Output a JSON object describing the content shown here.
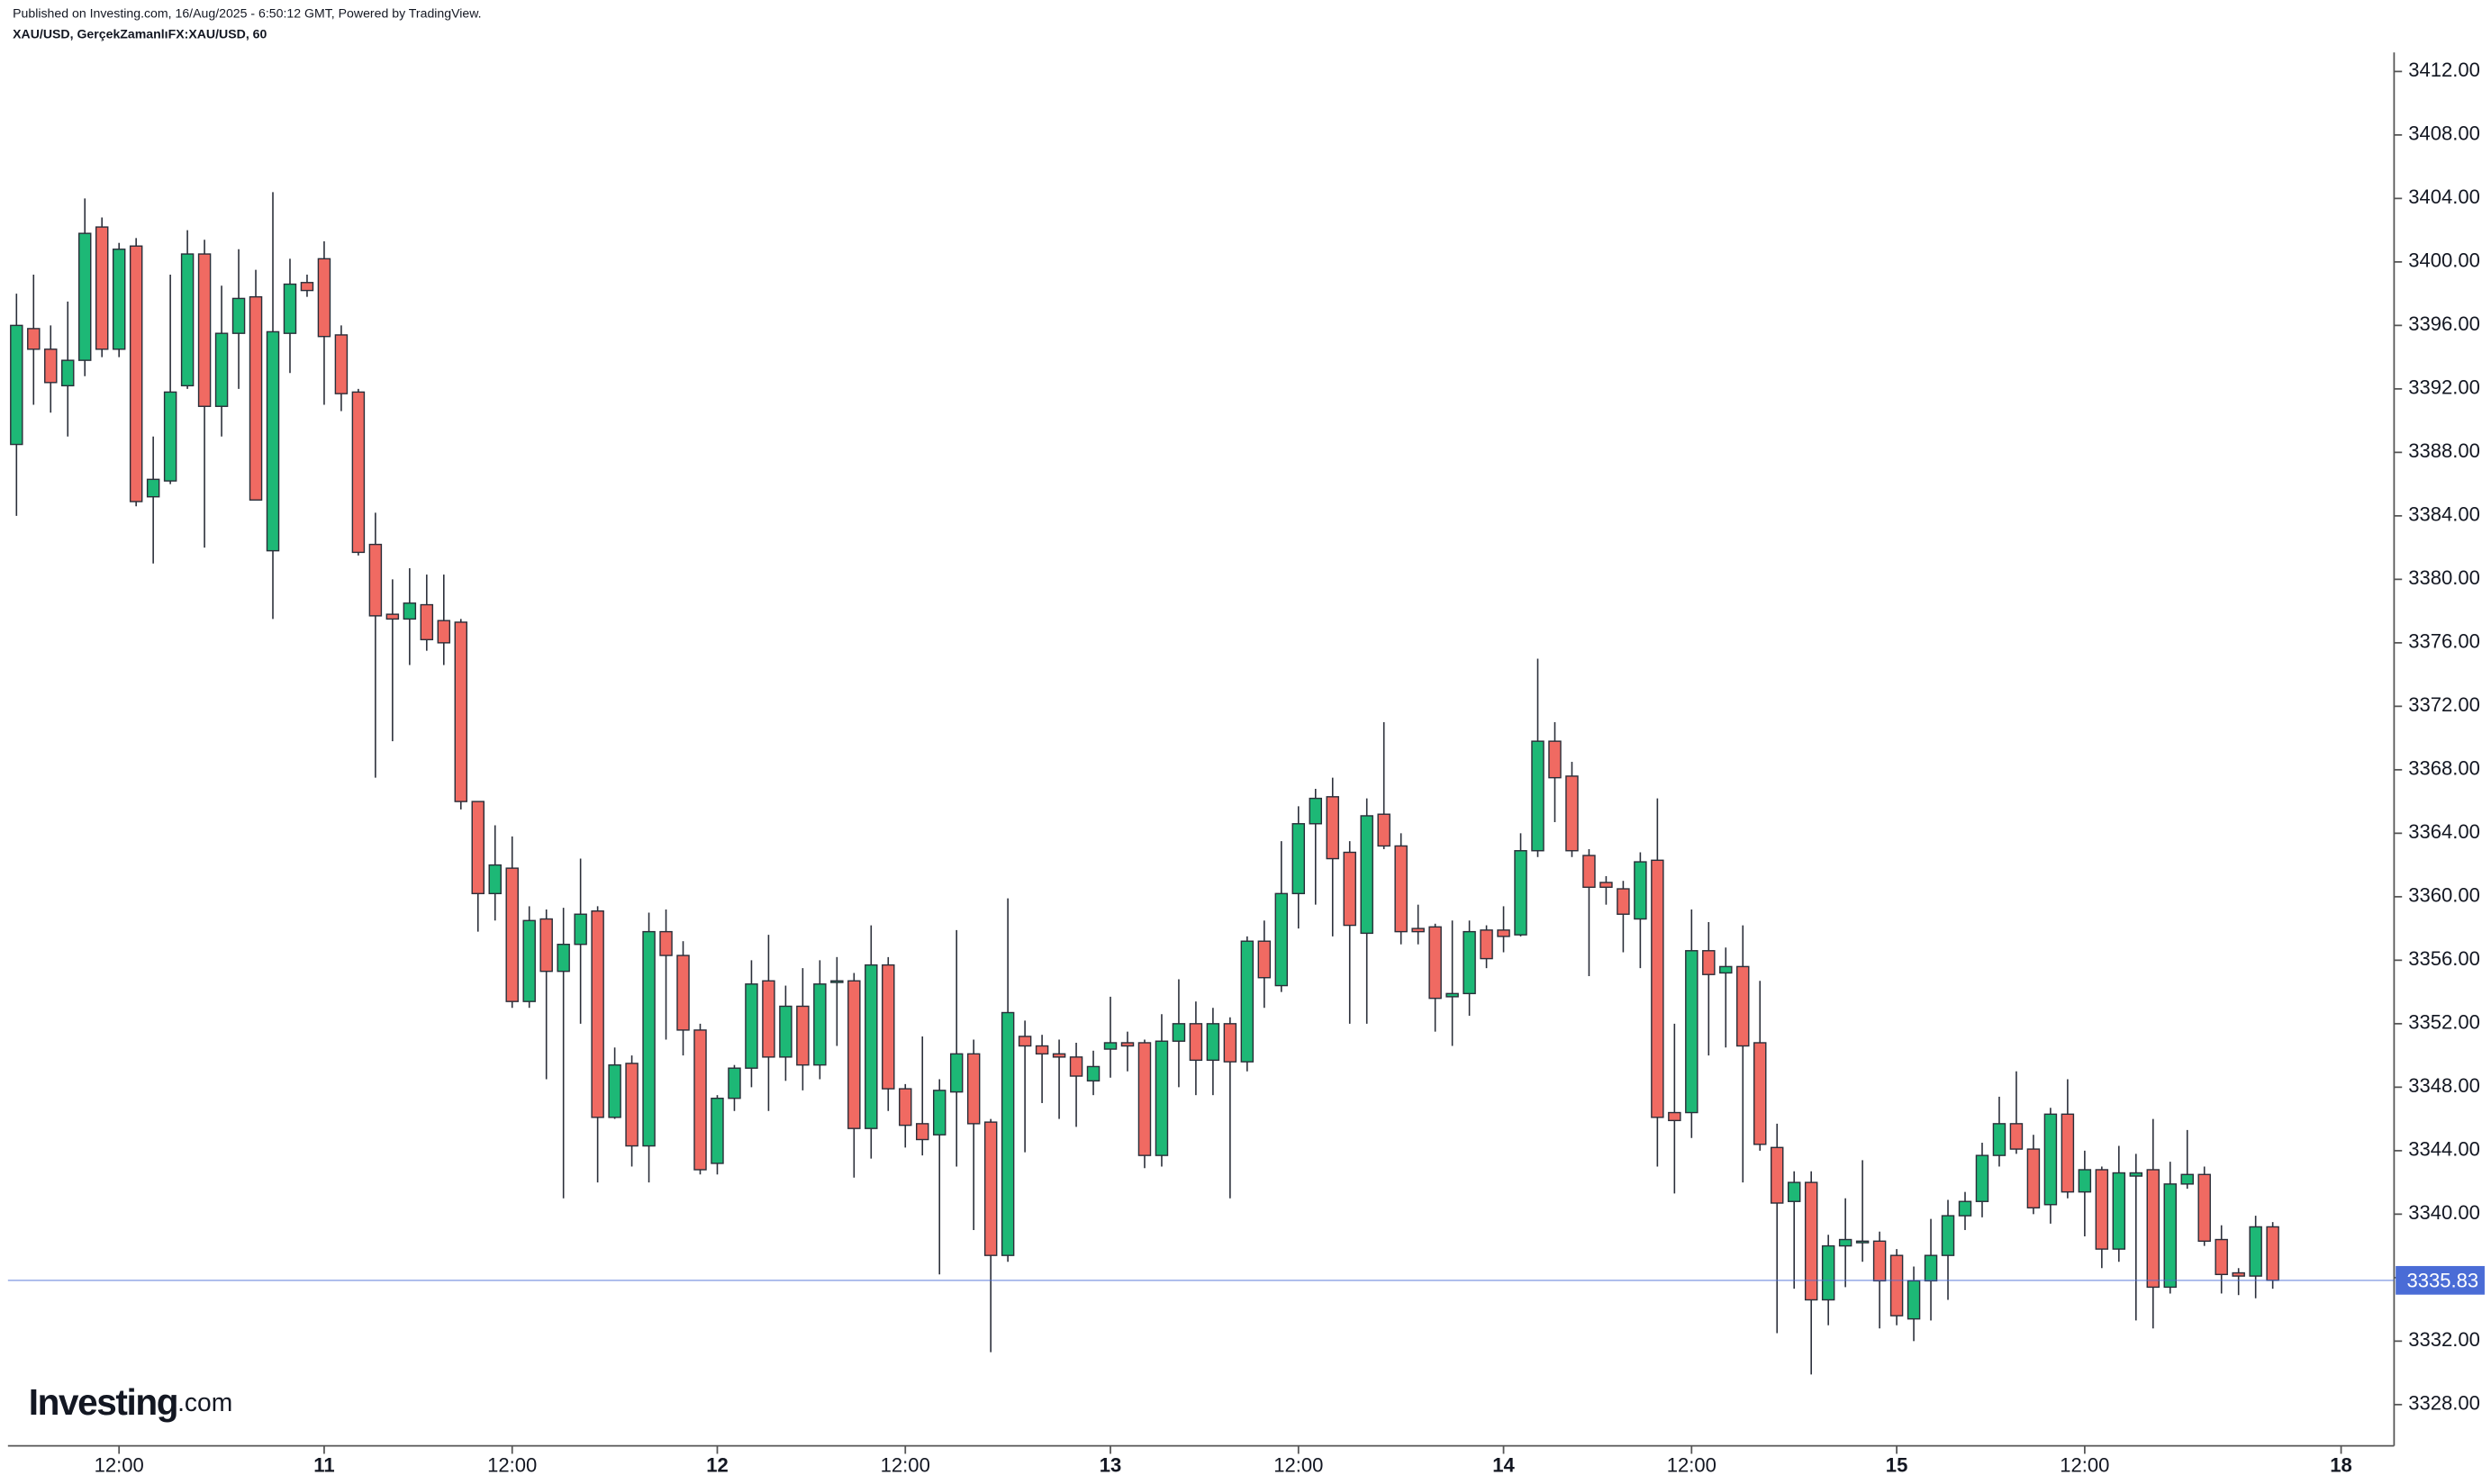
{
  "chart_data": {
    "type": "candlestick",
    "title": "Published on Investing.com, 16/Aug/2025 - 6:50:12 GMT, Powered by TradingView.",
    "subtitle": "XAU/USD, GerçekZamanlıFX:XAU/USD, 60",
    "logo": {
      "name": "Investing",
      "suffix": ".com"
    },
    "up_color": "#1db876",
    "down_color": "#f06a62",
    "price_line_color": "#4a6cd6",
    "last_price": 3335.83,
    "xlim": [
      -0.5,
      139.1
    ],
    "xticks": [
      {
        "value": 6,
        "label": "12:00"
      },
      {
        "value": 18,
        "label": "11"
      },
      {
        "value": 29,
        "label": "12:00"
      },
      {
        "value": 41,
        "label": "12"
      },
      {
        "value": 52,
        "label": "12:00"
      },
      {
        "value": 64,
        "label": "13"
      },
      {
        "value": 75,
        "label": "12:00"
      },
      {
        "value": 87,
        "label": "14"
      },
      {
        "value": 98,
        "label": "12:00"
      },
      {
        "value": 110,
        "label": "15"
      },
      {
        "value": 121,
        "label": "12:00"
      },
      {
        "value": 136,
        "label": "18"
      }
    ],
    "ylim": [
      3325.4,
      3413.2
    ],
    "yticks": [
      {
        "value": 3328,
        "label": "3328.00"
      },
      {
        "value": 3332,
        "label": "3332.00"
      },
      {
        "value": 3336,
        "label": "3336.00"
      },
      {
        "value": 3340,
        "label": "3340.00"
      },
      {
        "value": 3344,
        "label": "3344.00"
      },
      {
        "value": 3348,
        "label": "3348.00"
      },
      {
        "value": 3352,
        "label": "3352.00"
      },
      {
        "value": 3356,
        "label": "3356.00"
      },
      {
        "value": 3360,
        "label": "3360.00"
      },
      {
        "value": 3364,
        "label": "3364.00"
      },
      {
        "value": 3368,
        "label": "3368.00"
      },
      {
        "value": 3372,
        "label": "3372.00"
      },
      {
        "value": 3376,
        "label": "3376.00"
      },
      {
        "value": 3380,
        "label": "3380.00"
      },
      {
        "value": 3384,
        "label": "3384.00"
      },
      {
        "value": 3388,
        "label": "3388.00"
      },
      {
        "value": 3392,
        "label": "3392.00"
      },
      {
        "value": 3396,
        "label": "3396.00"
      },
      {
        "value": 3400,
        "label": "3400.00"
      },
      {
        "value": 3404,
        "label": "3404.00"
      },
      {
        "value": 3408,
        "label": "3408.00"
      },
      {
        "value": 3412,
        "label": "3412.00"
      }
    ],
    "x": [
      0,
      1,
      2,
      3,
      4,
      5,
      6,
      7,
      8,
      9,
      10,
      11,
      12,
      13,
      14,
      15,
      16,
      17,
      18,
      19,
      20,
      21,
      22,
      23,
      24,
      25,
      26,
      27,
      28,
      29,
      30,
      31,
      32,
      33,
      34,
      35,
      36,
      37,
      38,
      39,
      40,
      41,
      42,
      43,
      44,
      45,
      46,
      47,
      48,
      49,
      50,
      51,
      52,
      53,
      54,
      55,
      56,
      57,
      58,
      59,
      60,
      61,
      62,
      63,
      64,
      65,
      66,
      67,
      68,
      69,
      70,
      71,
      72,
      73,
      74,
      75,
      76,
      77,
      78,
      79,
      80,
      81,
      82,
      83,
      84,
      85,
      86,
      87,
      88,
      89,
      90,
      91,
      92,
      93,
      94,
      95,
      96,
      97,
      98,
      99,
      100,
      101,
      102,
      103,
      104,
      105,
      106,
      107,
      108,
      109,
      110,
      111,
      112,
      113,
      114,
      115,
      116,
      117,
      118,
      119,
      120,
      121,
      122,
      123,
      124,
      125,
      126,
      127,
      128,
      129,
      130,
      131,
      132
    ],
    "open": [
      3388.5,
      3395.8,
      3394.5,
      3392.2,
      3393.8,
      3402.2,
      3394.5,
      3401,
      3385.2,
      3386.2,
      3392.2,
      3400.5,
      3390.9,
      3395.5,
      3397.8,
      3381.8,
      3395.5,
      3398.7,
      3400.2,
      3395.4,
      3391.8,
      3382.2,
      3377.8,
      3377.5,
      3378.4,
      3377.4,
      3377.3,
      3366,
      3360.2,
      3361.8,
      3353.4,
      3358.6,
      3355.3,
      3357,
      3359.1,
      3346.1,
      3349.5,
      3344.3,
      3357.8,
      3356.3,
      3351.6,
      3343.2,
      3347.3,
      3349.2,
      3354.7,
      3349.9,
      3353.1,
      3349.4,
      3354.6,
      3354.7,
      3345.4,
      3355.7,
      3347.9,
      3345.7,
      3345,
      3347.7,
      3350.1,
      3345.8,
      3337.4,
      3351.2,
      3350.6,
      3350.1,
      3349.9,
      3348.4,
      3350.4,
      3350.8,
      3350.8,
      3343.7,
      3350.9,
      3352,
      3349.7,
      3352,
      3349.6,
      3357.2,
      3354.4,
      3360.2,
      3364.6,
      3366.3,
      3362.8,
      3357.7,
      3365.2,
      3363.2,
      3358,
      3358.1,
      3353.7,
      3353.9,
      3357.9,
      3357.9,
      3357.6,
      3362.9,
      3369.8,
      3367.6,
      3362.6,
      3360.9,
      3360.5,
      3358.6,
      3362.3,
      3346.4,
      3346.4,
      3356.6,
      3355.2,
      3355.6,
      3350.8,
      3344.2,
      3340.8,
      3342,
      3334.6,
      3338,
      3338.2,
      3338.3,
      3337.4,
      3333.4,
      3335.8,
      3337.4,
      3339.9,
      3340.8,
      3343.7,
      3345.7,
      3344.1,
      3340.6,
      3346.3,
      3341.4,
      3342.8,
      3337.8,
      3342.4,
      3342.8,
      3335.4,
      3341.9,
      3342.5,
      3338.4,
      3336.3,
      3336.1,
      3339.2
    ],
    "high": [
      3398,
      3399.2,
      3396,
      3397.5,
      3404,
      3402.8,
      3401.2,
      3401.5,
      3389,
      3399.2,
      3402,
      3401.4,
      3398.5,
      3400.8,
      3399.5,
      3404.4,
      3400.2,
      3399.2,
      3401.3,
      3396,
      3392,
      3384.2,
      3380,
      3380.7,
      3380.3,
      3380.3,
      3377.5,
      3366,
      3364.5,
      3363.8,
      3359.4,
      3359.2,
      3359.3,
      3362.4,
      3359.4,
      3350.5,
      3350,
      3359,
      3359.2,
      3357.2,
      3352,
      3347.5,
      3349.4,
      3356,
      3357.6,
      3354.4,
      3355.5,
      3356,
      3356.2,
      3355.2,
      3358.2,
      3356.2,
      3348.2,
      3351.2,
      3348.5,
      3357.9,
      3351,
      3346,
      3359.9,
      3352.2,
      3351.3,
      3351,
      3350.8,
      3350.3,
      3353.7,
      3351.5,
      3351,
      3352.6,
      3354.8,
      3353.4,
      3353,
      3352.4,
      3357.5,
      3358.5,
      3363.5,
      3365.7,
      3366.8,
      3367.5,
      3363.5,
      3366.2,
      3371,
      3364,
      3359.5,
      3358.3,
      3358.5,
      3358.5,
      3358.2,
      3359.4,
      3364,
      3375,
      3371,
      3368.5,
      3363,
      3361.3,
      3361,
      3362.8,
      3366.2,
      3352,
      3359.2,
      3358.4,
      3356.8,
      3358.2,
      3354.7,
      3345.7,
      3342.7,
      3342.7,
      3338.7,
      3341,
      3343.4,
      3338.9,
      3337.8,
      3336.7,
      3339.7,
      3340.9,
      3341.4,
      3344.5,
      3347.4,
      3349,
      3345,
      3346.7,
      3348.5,
      3344,
      3343,
      3344.3,
      3343.8,
      3346,
      3343.3,
      3345.3,
      3343,
      3339.3,
      3336.6,
      3339.9,
      3339.5
    ],
    "low": [
      3384,
      3391,
      3390.5,
      3389,
      3392.8,
      3394,
      3394,
      3384.6,
      3381,
      3386,
      3392,
      3382,
      3389,
      3392,
      3385,
      3377.5,
      3393,
      3397.8,
      3391,
      3390.6,
      3381.5,
      3367.5,
      3369.8,
      3374.6,
      3375.5,
      3374.6,
      3365.5,
      3357.8,
      3358.5,
      3353,
      3353,
      3348.5,
      3341,
      3352,
      3342,
      3346,
      3343,
      3342,
      3351,
      3350,
      3342.5,
      3342.5,
      3346.5,
      3348,
      3346.5,
      3348.4,
      3347.8,
      3348.5,
      3350.6,
      3342.3,
      3343.5,
      3346.5,
      3344.2,
      3343.7,
      3336.2,
      3343,
      3339,
      3331.3,
      3337,
      3343.9,
      3347,
      3346,
      3345.5,
      3347.5,
      3348.6,
      3349,
      3342.9,
      3343,
      3348,
      3347.5,
      3347.5,
      3341,
      3349,
      3353,
      3354,
      3358,
      3359.5,
      3357.5,
      3352,
      3352,
      3363,
      3357,
      3357,
      3351.5,
      3350.6,
      3352.5,
      3355.5,
      3356.5,
      3357.5,
      3362.5,
      3364.7,
      3362.5,
      3355,
      3359.5,
      3356.5,
      3355.5,
      3343,
      3341.3,
      3344.8,
      3350,
      3350.5,
      3342,
      3344,
      3332.5,
      3335.3,
      3329.9,
      3333,
      3335.4,
      3337,
      3332.8,
      3333,
      3332,
      3333.3,
      3334.6,
      3339,
      3339.8,
      3343,
      3343.8,
      3340,
      3339.4,
      3341,
      3338.6,
      3336.6,
      3337,
      3333.3,
      3332.8,
      3335,
      3341.6,
      3338,
      3335,
      3334.9,
      3334.7,
      3335.3
    ],
    "close": [
      3396,
      3394.5,
      3392.4,
      3393.8,
      3401.8,
      3394.5,
      3400.8,
      3384.9,
      3386.3,
      3391.8,
      3400.5,
      3390.9,
      3395.5,
      3397.7,
      3385,
      3395.6,
      3398.6,
      3398.2,
      3395.3,
      3391.7,
      3381.7,
      3377.7,
      3377.5,
      3378.5,
      3376.2,
      3376,
      3366,
      3360.2,
      3362,
      3353.4,
      3358.5,
      3355.3,
      3357,
      3358.9,
      3346.1,
      3349.4,
      3344.3,
      3357.8,
      3356.3,
      3351.6,
      3342.8,
      3347.3,
      3349.2,
      3354.5,
      3349.9,
      3353.1,
      3349.4,
      3354.5,
      3354.7,
      3345.4,
      3355.7,
      3347.9,
      3345.6,
      3344.7,
      3347.8,
      3350.1,
      3345.7,
      3337.4,
      3352.7,
      3350.6,
      3350.1,
      3349.9,
      3348.7,
      3349.3,
      3350.8,
      3350.6,
      3343.7,
      3350.9,
      3352,
      3349.7,
      3352,
      3349.6,
      3357.2,
      3354.9,
      3360.2,
      3364.6,
      3366.2,
      3362.4,
      3358.2,
      3365.1,
      3363.2,
      3357.8,
      3357.8,
      3353.6,
      3353.9,
      3357.8,
      3356.1,
      3357.5,
      3362.9,
      3369.8,
      3367.5,
      3362.9,
      3360.6,
      3360.6,
      3358.9,
      3362.2,
      3346.1,
      3345.9,
      3356.6,
      3355.1,
      3355.6,
      3350.6,
      3344.4,
      3340.7,
      3342,
      3334.6,
      3338,
      3338.4,
      3338.3,
      3335.8,
      3333.6,
      3335.8,
      3337.4,
      3339.9,
      3340.8,
      3343.7,
      3345.7,
      3344.1,
      3340.4,
      3346.3,
      3341.4,
      3342.8,
      3337.8,
      3342.6,
      3342.6,
      3335.4,
      3341.9,
      3342.5,
      3338.3,
      3336.2,
      3336.1,
      3339.2,
      3335.83
    ]
  }
}
